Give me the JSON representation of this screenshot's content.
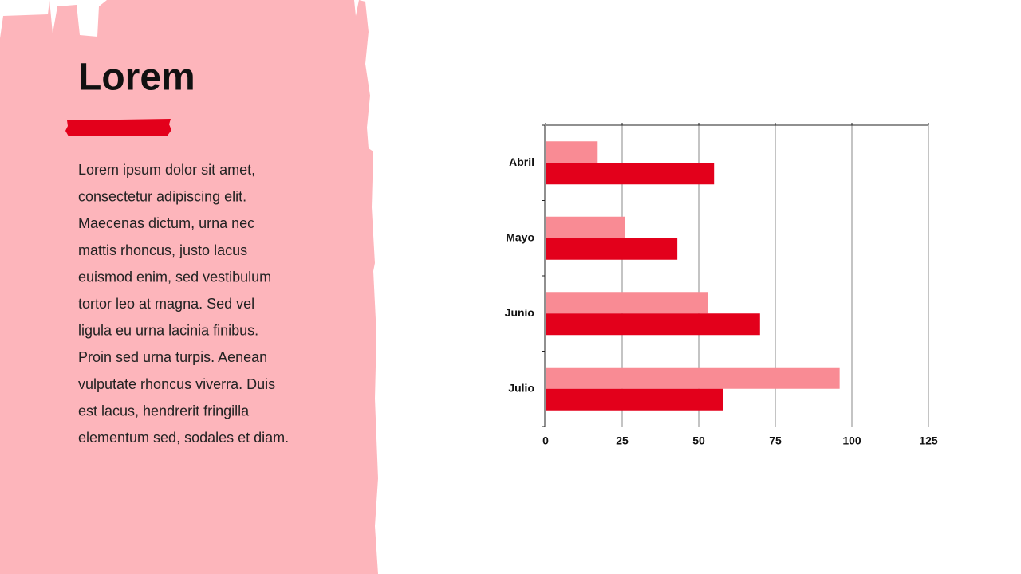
{
  "title": "Lorem",
  "body": {
    "lines": [
      "Lorem ipsum dolor sit amet,",
      "consectetur adipiscing elit.",
      "Maecenas dictum, urna nec",
      "mattis rhoncus, justo lacus",
      "euismod enim, sed vestibulum",
      "tortor leo at magna. Sed vel",
      "ligula eu urna lacinia finibus.",
      "Proin sed urna turpis. Aenean",
      "vulputate rhoncus viverra. Duis",
      "est lacus, hendrerit fringilla",
      "elementum sed, sodales et diam."
    ]
  },
  "chart_data": {
    "type": "hbar",
    "categories": [
      "Abril",
      "Mayo",
      "Junio",
      "Julio"
    ],
    "series": [
      {
        "color": "#f98b94",
        "values": [
          17,
          26,
          53,
          96
        ]
      },
      {
        "color": "#e3001b",
        "values": [
          55,
          43,
          70,
          58
        ]
      }
    ],
    "xlim": [
      0,
      125
    ],
    "xticks": [
      0,
      25,
      50,
      75,
      100,
      125
    ],
    "grid": true
  }
}
